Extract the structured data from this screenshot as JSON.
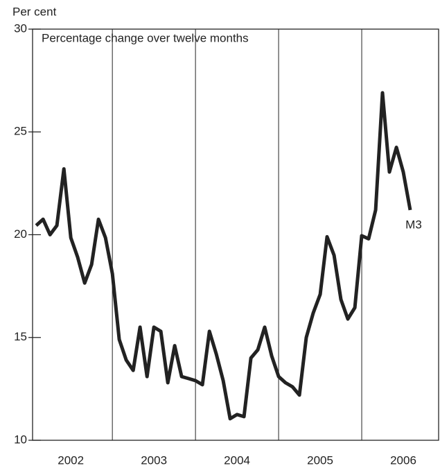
{
  "chart_data": {
    "type": "line",
    "y_label": "Per cent",
    "subtitle": "Percentage change over twelve months",
    "x": [
      2002.083,
      2002.167,
      2002.25,
      2002.333,
      2002.417,
      2002.5,
      2002.583,
      2002.667,
      2002.75,
      2002.833,
      2002.917,
      2003.0,
      2003.083,
      2003.167,
      2003.25,
      2003.333,
      2003.417,
      2003.5,
      2003.583,
      2003.667,
      2003.75,
      2003.833,
      2003.917,
      2004.0,
      2004.083,
      2004.167,
      2004.25,
      2004.333,
      2004.417,
      2004.5,
      2004.583,
      2004.667,
      2004.75,
      2004.833,
      2004.917,
      2005.0,
      2005.083,
      2005.167,
      2005.25,
      2005.333,
      2005.417,
      2005.5,
      2005.583,
      2005.667,
      2005.75,
      2005.833,
      2005.917,
      2006.0,
      2006.083,
      2006.167,
      2006.25,
      2006.333,
      2006.417,
      2006.5,
      2006.583
    ],
    "series": [
      {
        "name": "M3",
        "color": "#222222",
        "values": [
          20.45,
          20.75,
          20.0,
          20.45,
          23.2,
          19.85,
          18.9,
          17.65,
          18.55,
          20.75,
          19.85,
          18.1,
          14.9,
          13.9,
          13.4,
          15.5,
          13.1,
          15.5,
          15.3,
          12.8,
          14.6,
          13.1,
          13.0,
          12.9,
          12.7,
          15.3,
          14.2,
          12.9,
          11.05,
          11.25,
          11.15,
          14.0,
          14.4,
          15.5,
          14.1,
          13.1,
          12.8,
          12.6,
          12.2,
          15.0,
          16.2,
          17.1,
          19.9,
          19.0,
          16.85,
          15.9,
          16.45,
          19.95,
          19.8,
          21.2,
          26.9,
          23.05,
          24.25,
          23.05,
          21.2
        ]
      }
    ],
    "xlim": [
      2002.04,
      2006.925
    ],
    "xticks": [
      {
        "value": 2002.5,
        "label": "2002"
      },
      {
        "value": 2003.5,
        "label": "2003"
      },
      {
        "value": 2004.5,
        "label": "2004"
      },
      {
        "value": 2005.5,
        "label": "2005"
      },
      {
        "value": 2006.5,
        "label": "2006"
      }
    ],
    "ylim": [
      10,
      30
    ],
    "yticks": [
      10,
      15,
      20,
      25,
      30
    ]
  }
}
